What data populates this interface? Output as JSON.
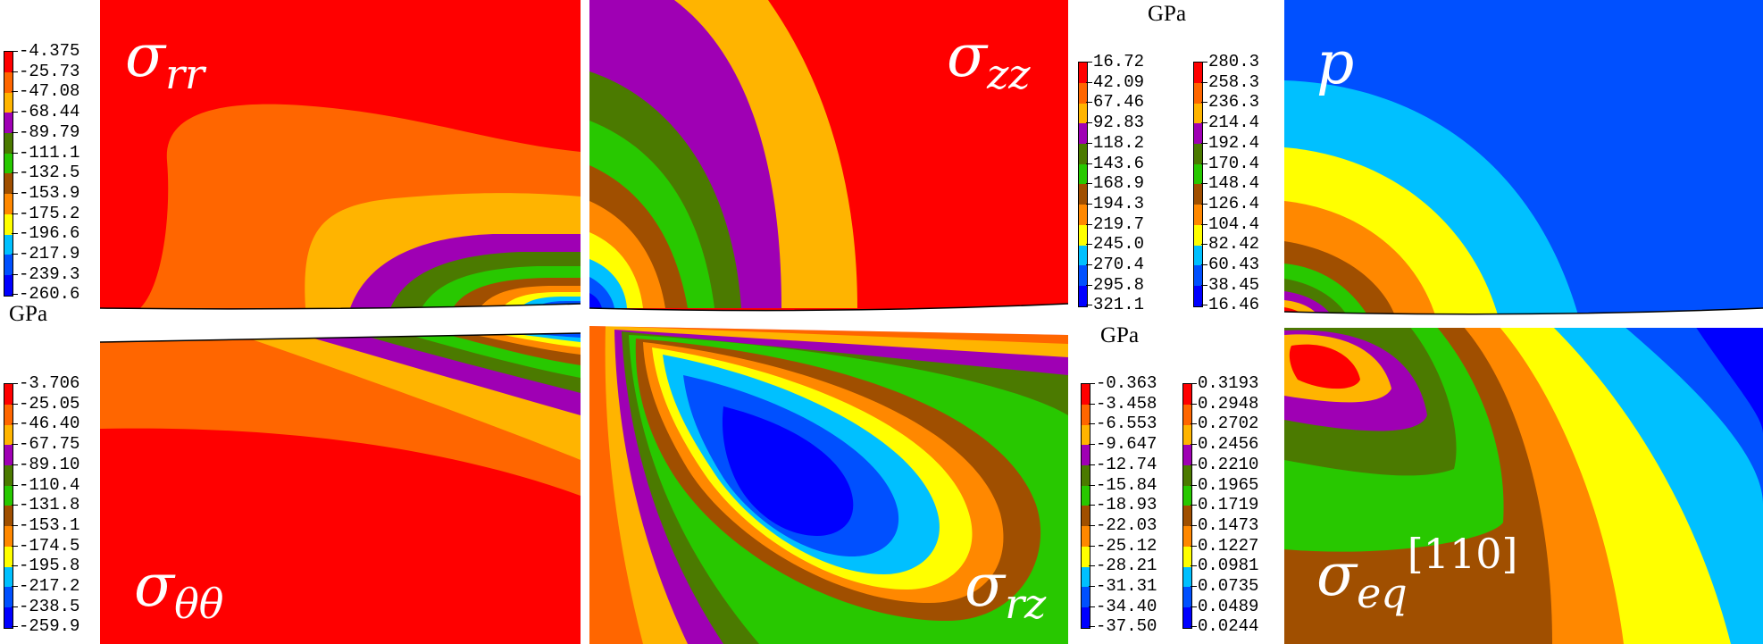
{
  "figure": {
    "panels": {
      "srr": {
        "symbol": "σ",
        "subscript": "rr",
        "superscript": ""
      },
      "szz": {
        "symbol": "σ",
        "subscript": "zz",
        "superscript": ""
      },
      "p": {
        "symbol": "p",
        "subscript": "",
        "superscript": ""
      },
      "stt": {
        "symbol": "σ",
        "subscript": "θθ",
        "superscript": ""
      },
      "srz": {
        "symbol": "σ",
        "subscript": "rz",
        "superscript": ""
      },
      "seq": {
        "symbol": "σ",
        "subscript": "eq",
        "superscript": "[110]"
      }
    },
    "units": {
      "szz_p": "GPa",
      "srr": "GPa",
      "srz": "GPa"
    },
    "colormap": [
      "#ff0000",
      "#ff6600",
      "#ffb400",
      "#9f00b4",
      "#4b7a00",
      "#28c800",
      "#a04f00",
      "#ff8800",
      "#ffff00",
      "#00c0ff",
      "#0050ff",
      "#0000ff"
    ],
    "legends": {
      "srr": [
        "-4.375",
        "-25.73",
        "-47.08",
        "-68.44",
        "-89.79",
        "-111.1",
        "-132.5",
        "-153.9",
        "-175.2",
        "-196.6",
        "-217.9",
        "-239.3",
        "-260.6"
      ],
      "szz": [
        "16.72",
        "42.09",
        "67.46",
        "92.83",
        "118.2",
        "143.6",
        "168.9",
        "194.3",
        "219.7",
        "245.0",
        "270.4",
        "295.8",
        "321.1"
      ],
      "p": [
        "280.3",
        "258.3",
        "236.3",
        "214.4",
        "192.4",
        "170.4",
        "148.4",
        "126.4",
        "104.4",
        "82.42",
        "60.43",
        "38.45",
        "16.46"
      ],
      "stt": [
        "-3.706",
        "-25.05",
        "-46.40",
        "-67.75",
        "-89.10",
        "-110.4",
        "-131.8",
        "-153.1",
        "-174.5",
        "-195.8",
        "-217.2",
        "-238.5",
        "-259.9"
      ],
      "srz": [
        "-0.363",
        "-3.458",
        "-6.553",
        "-9.647",
        "-12.74",
        "-15.84",
        "-18.93",
        "-22.03",
        "-25.12",
        "-28.21",
        "-31.31",
        "-34.40",
        "-37.50"
      ],
      "seq": [
        "0.3193",
        "0.2948",
        "0.2702",
        "0.2456",
        "0.2210",
        "0.1965",
        "0.1719",
        "0.1473",
        "0.1227",
        "0.0981",
        "0.0735",
        "0.0489",
        "0.0244"
      ]
    }
  }
}
